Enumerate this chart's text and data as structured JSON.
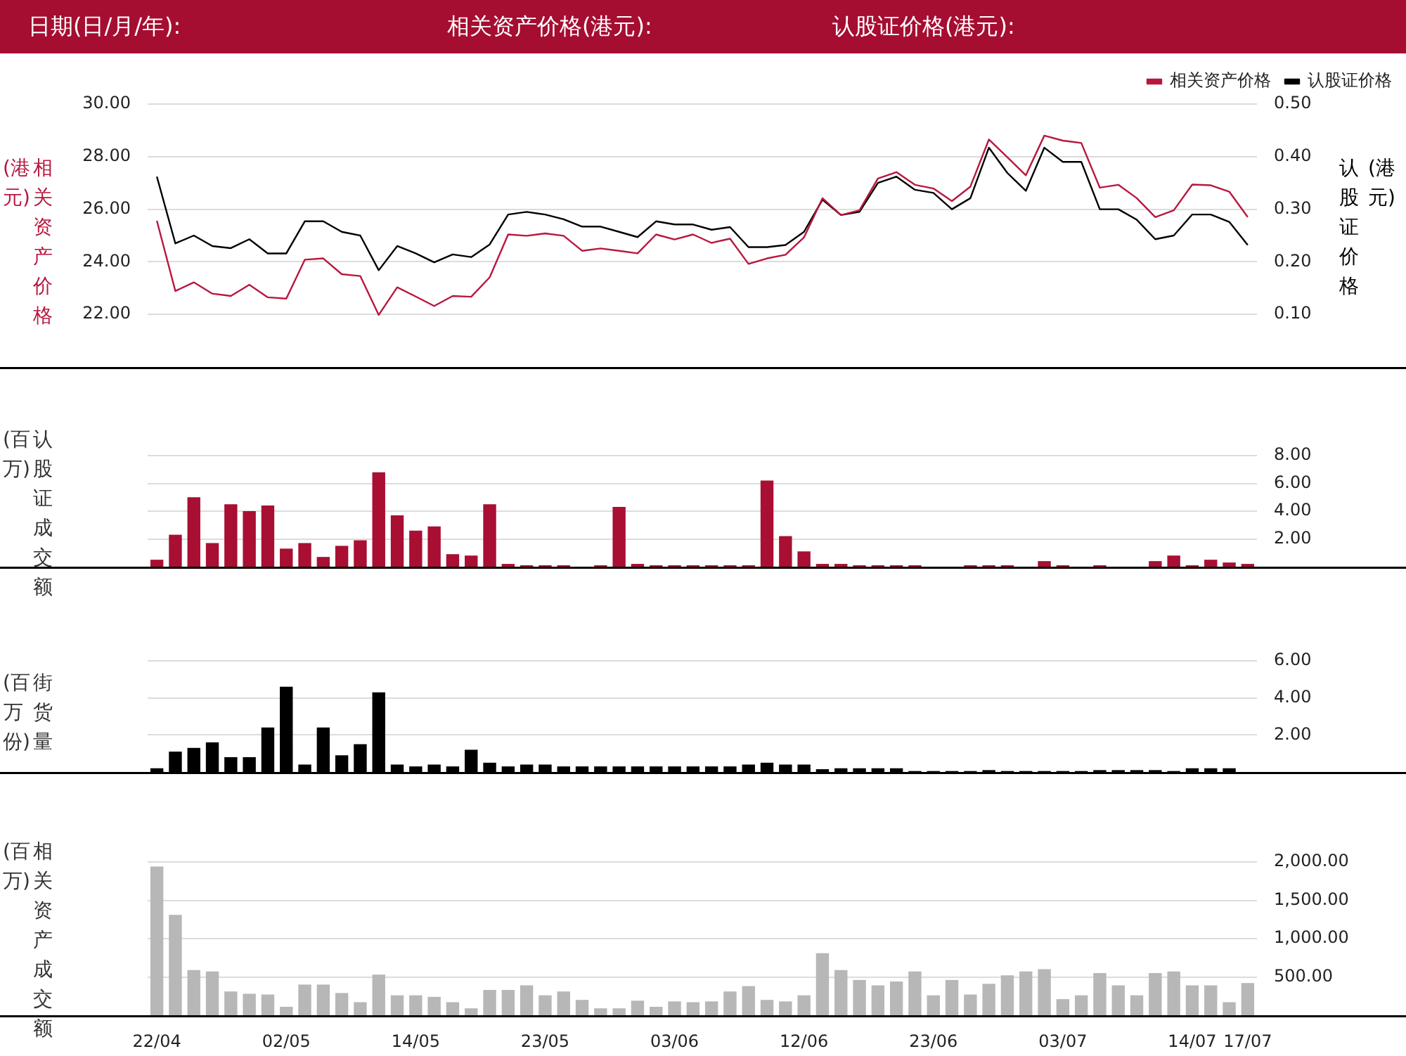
{
  "chart_data": [
    {
      "type": "line",
      "annotations": [
        "日期(日/月/年):",
        "相关资产价格(港元):",
        "认股证价格(港元):"
      ],
      "ylabel": "相关资产价格(港元)",
      "y2label": "认股证价格(港元)",
      "categories": [
        null,
        null,
        null,
        null,
        null,
        null,
        null,
        null,
        null,
        null,
        null,
        null,
        null,
        null,
        null,
        null,
        null,
        null,
        null,
        null,
        null,
        null,
        null,
        null,
        null,
        null,
        null,
        null,
        null,
        null,
        null,
        null,
        null,
        null,
        null,
        null,
        null,
        null,
        null,
        null,
        null,
        null,
        null,
        null,
        null,
        null,
        null,
        null,
        null,
        null,
        null,
        null,
        null,
        null,
        null,
        null,
        null,
        null,
        null,
        null
      ],
      "series": [
        {
          "name": "相关资产价格",
          "color": "#b8173e",
          "values": [
            25.56,
            22.89,
            23.22,
            22.79,
            22.7,
            23.13,
            22.65,
            22.6,
            24.08,
            24.13,
            23.53,
            23.46,
            21.98,
            23.03,
            22.68,
            22.32,
            22.7,
            22.67,
            23.41,
            25.04,
            24.99,
            25.08,
            24.99,
            24.42,
            24.51,
            24.42,
            24.32,
            25.04,
            24.85,
            25.04,
            24.72,
            24.88,
            23.92,
            24.13,
            24.27,
            24.93,
            26.42,
            25.78,
            25.96,
            27.17,
            27.41,
            26.93,
            26.79,
            26.31,
            26.86,
            28.65,
            27.98,
            27.29,
            28.8,
            28.61,
            28.52,
            26.82,
            26.93,
            26.42,
            25.7,
            25.96,
            26.94,
            26.91,
            26.67,
            25.7
          ]
        },
        {
          "name": "认股证价格",
          "color": "#000000",
          "axis": "y2",
          "values": [
            0.362,
            0.235,
            0.25,
            0.23,
            0.226,
            0.243,
            0.216,
            0.216,
            0.277,
            0.277,
            0.257,
            0.25,
            0.184,
            0.23,
            0.216,
            0.199,
            0.214,
            0.209,
            0.233,
            0.29,
            0.295,
            0.29,
            0.281,
            0.267,
            0.267,
            0.257,
            0.247,
            0.277,
            0.271,
            0.271,
            0.261,
            0.266,
            0.228,
            0.228,
            0.232,
            0.257,
            0.318,
            0.289,
            0.295,
            0.35,
            0.362,
            0.337,
            0.331,
            0.3,
            0.321,
            0.417,
            0.369,
            0.335,
            0.417,
            0.39,
            0.39,
            0.3,
            0.3,
            0.28,
            0.243,
            0.25,
            0.29,
            0.29,
            0.276,
            0.232
          ]
        }
      ],
      "ylim": [
        20,
        30
      ],
      "yticks": [
        {
          "value": 22,
          "label": "22.00"
        },
        {
          "value": 24,
          "label": "24.00"
        },
        {
          "value": 26,
          "label": "26.00"
        },
        {
          "value": 28,
          "label": "28.00"
        },
        {
          "value": 30,
          "label": "30.00"
        }
      ],
      "y2lim": [
        0,
        0.5
      ],
      "y2ticks": [
        {
          "value": 0.1,
          "label": "0.10"
        },
        {
          "value": 0.2,
          "label": "0.20"
        },
        {
          "value": 0.3,
          "label": "0.30"
        },
        {
          "value": 0.4,
          "label": "0.40"
        },
        {
          "value": 0.5,
          "label": "0.50"
        }
      ],
      "grid": "y",
      "legend": "top right",
      "tick_labels": "y"
    },
    {
      "type": "bar",
      "ylabel": "认股证成交额(百万)",
      "categories": [
        null,
        null,
        null,
        null,
        null,
        null,
        null,
        null,
        null,
        null,
        null,
        null,
        null,
        null,
        null,
        null,
        null,
        null,
        null,
        null,
        null,
        null,
        null,
        null,
        null,
        null,
        null,
        null,
        null,
        null,
        null,
        null,
        null,
        null,
        null,
        null,
        null,
        null,
        null,
        null,
        null,
        null,
        null,
        null,
        null,
        null,
        null,
        null,
        null,
        null,
        null,
        null,
        null,
        null,
        null,
        null,
        null,
        null,
        null,
        null
      ],
      "series": [
        {
          "color": "#a80f33",
          "values": [
            0.5,
            2.3,
            5.0,
            1.7,
            4.5,
            4.0,
            4.4,
            1.3,
            1.7,
            0.7,
            1.5,
            1.9,
            6.8,
            3.7,
            2.6,
            2.9,
            0.9,
            0.8,
            4.5,
            0.2,
            0.1,
            0.1,
            0.1,
            0,
            0.1,
            4.3,
            0.2,
            0.1,
            0.1,
            0.1,
            0.1,
            0.1,
            0.1,
            6.2,
            2.2,
            1.1,
            0.2,
            0.2,
            0.1,
            0.1,
            0.1,
            0.1,
            0,
            0,
            0.1,
            0.1,
            0.1,
            0,
            0.4,
            0.1,
            0,
            0.1,
            0,
            0,
            0.4,
            0.8,
            0.1,
            0.5,
            0.3,
            0.2
          ]
        }
      ],
      "ylim": [
        0,
        8
      ],
      "yticks": [
        {
          "value": 2,
          "label": "2.00"
        },
        {
          "value": 4,
          "label": "4.00"
        },
        {
          "value": 6,
          "label": "6.00"
        },
        {
          "value": 8,
          "label": "8.00"
        }
      ],
      "grid": "y",
      "tick_labels": "y"
    },
    {
      "type": "bar",
      "ylabel": "街货量(百万份)",
      "categories": [
        null,
        null,
        null,
        null,
        null,
        null,
        null,
        null,
        null,
        null,
        null,
        null,
        null,
        null,
        null,
        null,
        null,
        null,
        null,
        null,
        null,
        null,
        null,
        null,
        null,
        null,
        null,
        null,
        null,
        null,
        null,
        null,
        null,
        null,
        null,
        null,
        null,
        null,
        null,
        null,
        null,
        null,
        null,
        null,
        null,
        null,
        null,
        null,
        null,
        null,
        null,
        null,
        null,
        null,
        null,
        null,
        null,
        null,
        null,
        null
      ],
      "series": [
        {
          "color": "#000000",
          "values": [
            0.2,
            1.1,
            1.3,
            1.6,
            0.8,
            0.8,
            2.4,
            4.6,
            0.4,
            2.4,
            0.9,
            1.5,
            4.3,
            0.4,
            0.3,
            0.4,
            0.3,
            1.2,
            0.5,
            0.3,
            0.4,
            0.4,
            0.3,
            0.3,
            0.3,
            0.3,
            0.3,
            0.3,
            0.3,
            0.3,
            0.3,
            0.3,
            0.4,
            0.5,
            0.4,
            0.4,
            0.15,
            0.2,
            0.2,
            0.2,
            0.2,
            0.05,
            0.05,
            0.05,
            0.05,
            0.1,
            0.05,
            0.05,
            0.05,
            0.05,
            0.05,
            0.1,
            0.1,
            0.1,
            0.1,
            0.05,
            0.2,
            0.2,
            0.2,
            null
          ]
        }
      ],
      "ylim": [
        0,
        6
      ],
      "yticks": [
        {
          "value": 2,
          "label": "2.00"
        },
        {
          "value": 4,
          "label": "4.00"
        },
        {
          "value": 6,
          "label": "6.00"
        }
      ],
      "grid": "y",
      "tick_labels": "y"
    },
    {
      "type": "bar",
      "ylabel": "相关资产成交额(百万)",
      "categories": [
        "22/04",
        null,
        null,
        null,
        null,
        null,
        null,
        "02/05",
        null,
        null,
        null,
        null,
        null,
        null,
        "14/05",
        null,
        null,
        null,
        null,
        null,
        null,
        "23/05",
        null,
        null,
        null,
        null,
        null,
        null,
        "03/06",
        null,
        null,
        null,
        null,
        null,
        null,
        "12/06",
        null,
        null,
        null,
        null,
        null,
        null,
        "23/06",
        null,
        null,
        null,
        null,
        null,
        null,
        "03/07",
        null,
        null,
        null,
        null,
        null,
        null,
        "14/07",
        null,
        null,
        "17/07"
      ],
      "series": [
        {
          "color": "#b7b7b7",
          "values": [
            1940,
            1310,
            590,
            570,
            310,
            280,
            270,
            110,
            400,
            400,
            290,
            170,
            530,
            260,
            260,
            240,
            170,
            90,
            330,
            330,
            390,
            260,
            310,
            200,
            90,
            90,
            190,
            110,
            180,
            170,
            180,
            310,
            380,
            200,
            180,
            260,
            810,
            590,
            460,
            390,
            440,
            570,
            260,
            460,
            270,
            410,
            520,
            570,
            600,
            210,
            260,
            550,
            390,
            260,
            550,
            570,
            390,
            390,
            170,
            420
          ]
        }
      ],
      "ylim": [
        0,
        2000
      ],
      "yticks": [
        {
          "value": 500,
          "label": "500.00"
        },
        {
          "value": 1000,
          "label": "1,000.00"
        },
        {
          "value": 1500,
          "label": "1,500.00"
        },
        {
          "value": 2000,
          "label": "2,000.00"
        }
      ],
      "grid": "y"
    }
  ]
}
